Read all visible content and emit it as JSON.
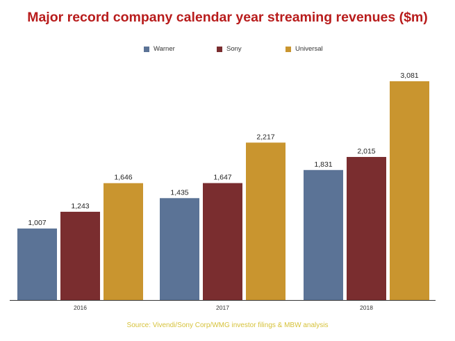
{
  "chart_data": {
    "type": "bar",
    "title": "Major record company calendar year streaming revenues ($m)",
    "categories": [
      "2016",
      "2017",
      "2018"
    ],
    "series": [
      {
        "name": "Warner",
        "color": "#5b7396",
        "values": [
          1007,
          1435,
          1831
        ]
      },
      {
        "name": "Sony",
        "color": "#7a2d2f",
        "values": [
          1243,
          1647,
          2015
        ]
      },
      {
        "name": "Universal",
        "color": "#c9952f",
        "values": [
          1646,
          2217,
          3081
        ]
      }
    ],
    "value_labels": [
      [
        "1,007",
        "1,435",
        "1,831"
      ],
      [
        "1,243",
        "1,647",
        "2,015"
      ],
      [
        "1,646",
        "2,217",
        "3,081"
      ]
    ],
    "ylim": [
      0,
      3081
    ],
    "grid": false,
    "legend": "top-center",
    "source": "Source: Vivendi/Sony Corp/WMG investor filings & MBW analysis"
  }
}
